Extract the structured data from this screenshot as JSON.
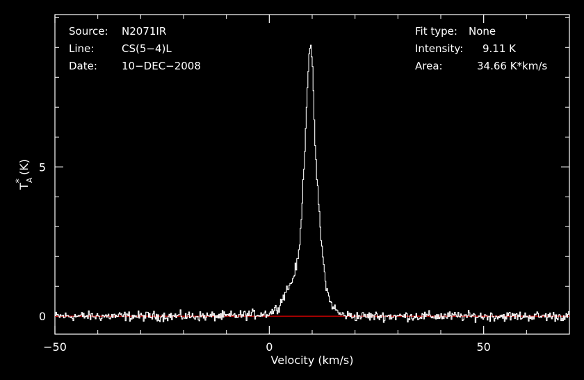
{
  "header": {
    "left": [
      {
        "key": "Source:",
        "value": "N2071IR"
      },
      {
        "key": "Line:",
        "value": "CS(5−4)L"
      },
      {
        "key": "Date:",
        "value": "10−DEC−2008"
      }
    ],
    "right": [
      {
        "key": "Fit type:",
        "value": "None"
      },
      {
        "key": "Intensity:",
        "value": "9.11 K"
      },
      {
        "key": "Area:",
        "value": "34.66 K*km/s"
      }
    ]
  },
  "chart_data": {
    "type": "line",
    "xlabel": "Velocity (km/s)",
    "ylabel": "T*A (K)",
    "xlim": [
      -50,
      70
    ],
    "ylim": [
      -0.6,
      10.1
    ],
    "xticks": [
      -50,
      0,
      50
    ],
    "xtick_labels": [
      "−50",
      "0",
      "50"
    ],
    "yticks": [
      0,
      5
    ],
    "ytick_labels": [
      "0",
      "5"
    ],
    "baseline": 0,
    "grid": false,
    "colors": {
      "background": "#000000",
      "spectrum": "#ffffff",
      "baseline": "#cc0000",
      "axes": "#ffffff"
    },
    "series": [
      {
        "name": "",
        "x": [
          -50,
          -10,
          0,
          2,
          3,
          4,
          5,
          5.5,
          6,
          6.5,
          7,
          7.5,
          8,
          8.5,
          9,
          9.3,
          9.6,
          10,
          10.3,
          10.6,
          11,
          11.5,
          12,
          12.5,
          13,
          13.5,
          14,
          15,
          16,
          17,
          20,
          30,
          70
        ],
        "y": [
          0,
          0,
          0.1,
          0.3,
          0.6,
          0.9,
          1.1,
          1.3,
          1.6,
          1.8,
          2.4,
          3.6,
          5.0,
          6.7,
          8.3,
          9.1,
          9.0,
          8.2,
          7.0,
          5.8,
          4.6,
          3.6,
          2.6,
          1.8,
          1.2,
          0.8,
          0.5,
          0.3,
          0.1,
          0.05,
          0,
          0,
          0
        ]
      }
    ]
  }
}
